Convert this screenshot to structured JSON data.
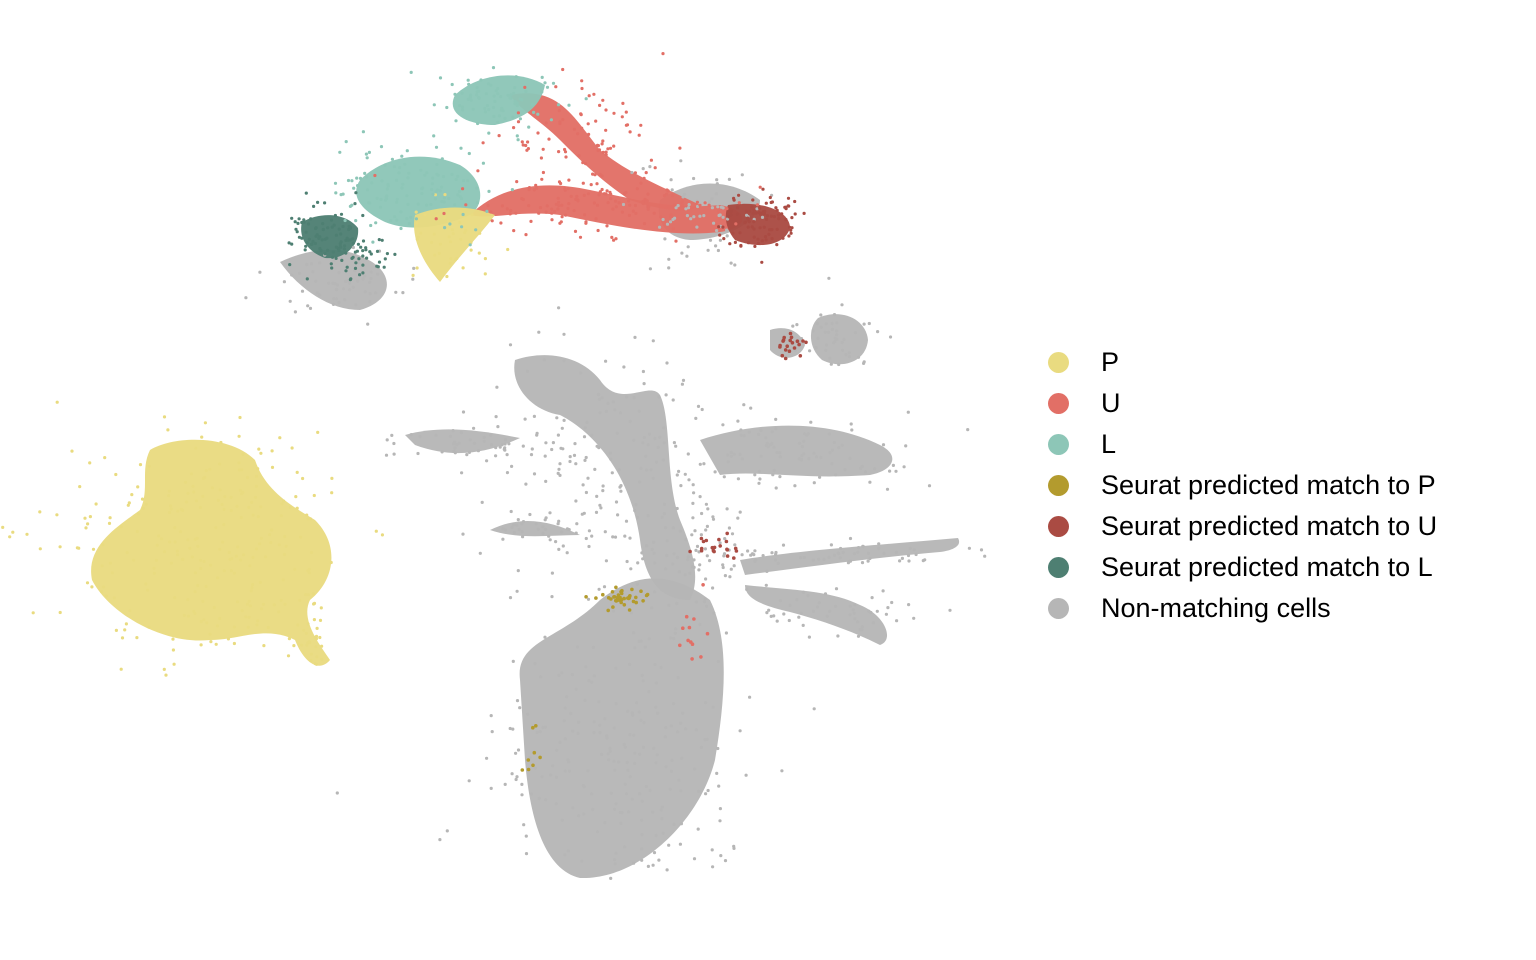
{
  "chart_data": {
    "type": "scatter",
    "title": "",
    "xlabel": "",
    "ylabel": "",
    "axes_visible": false,
    "grid": false,
    "legend_placement": "right",
    "series": [
      {
        "name": "P",
        "color": "#E9DB80"
      },
      {
        "name": "U",
        "color": "#E26F66"
      },
      {
        "name": "L",
        "color": "#8DC6B7"
      },
      {
        "name": "Seurat predicted match to P",
        "color": "#B39B2E"
      },
      {
        "name": "Seurat predicted match to U",
        "color": "#AA4B43"
      },
      {
        "name": "Seurat predicted match to L",
        "color": "#4E7F72"
      },
      {
        "name": "Non-matching cells",
        "color": "#B6B6B6"
      }
    ]
  }
}
